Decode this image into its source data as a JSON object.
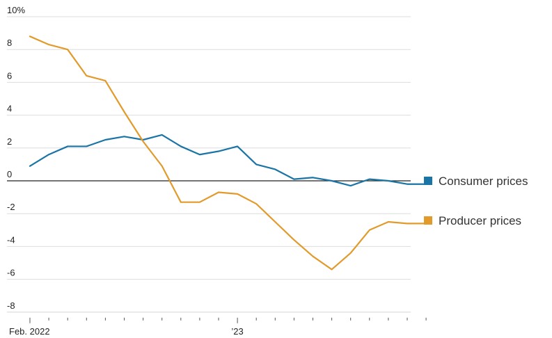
{
  "chart_data": {
    "type": "line",
    "title": "",
    "xlabel": "",
    "ylabel": "",
    "ylim": [
      -8,
      10
    ],
    "y_ticks": [
      10,
      8,
      6,
      4,
      2,
      0,
      -2,
      -4,
      -6,
      -8
    ],
    "y_tick_labels": [
      "10%",
      "8",
      "6",
      "4",
      "2",
      "0",
      "-2",
      "-4",
      "-6",
      "-8"
    ],
    "x": [
      "2022-02",
      "2022-03",
      "2022-04",
      "2022-05",
      "2022-06",
      "2022-07",
      "2022-08",
      "2022-09",
      "2022-10",
      "2022-11",
      "2022-12",
      "2023-01",
      "2023-02",
      "2023-03",
      "2023-04",
      "2023-05",
      "2023-06",
      "2023-07",
      "2023-08",
      "2023-09",
      "2023-10",
      "2023-11"
    ],
    "x_tick_labels": [
      {
        "index": 0,
        "label": "Feb. 2022"
      },
      {
        "index": 11,
        "label": "’23"
      }
    ],
    "grid": true,
    "legend_placement": "right",
    "series": [
      {
        "name": "Consumer prices",
        "color": "#1a74a6",
        "values": [
          0.9,
          1.6,
          2.1,
          2.1,
          2.5,
          2.7,
          2.5,
          2.8,
          2.1,
          1.6,
          1.8,
          2.1,
          1.0,
          0.7,
          0.1,
          0.2,
          0.0,
          -0.3,
          0.1,
          0.0,
          -0.2,
          -0.2
        ]
      },
      {
        "name": "Producer prices",
        "color": "#e29a2b",
        "values": [
          8.8,
          8.3,
          8.0,
          6.4,
          6.1,
          4.2,
          2.4,
          0.9,
          -1.3,
          -1.3,
          -0.7,
          -0.8,
          -1.4,
          -2.5,
          -3.6,
          -4.6,
          -5.4,
          -4.4,
          -3.0,
          -2.5,
          -2.6,
          -2.6
        ]
      }
    ]
  }
}
